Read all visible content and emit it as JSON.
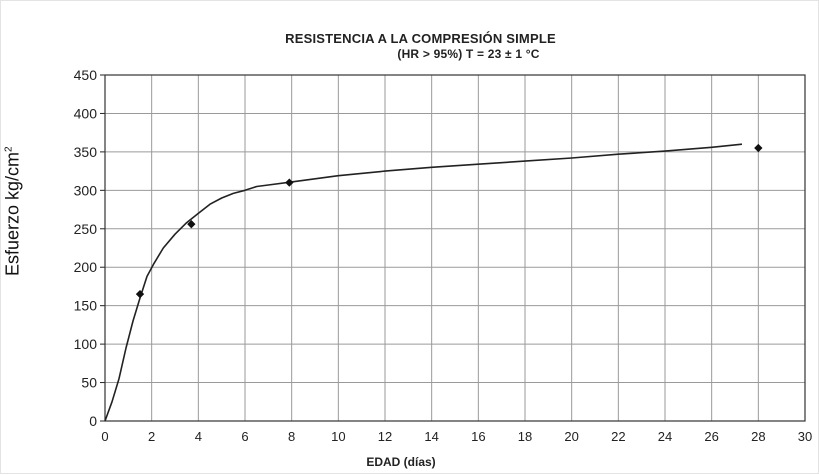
{
  "chart_data": {
    "type": "line",
    "title": "RESISTENCIA A LA COMPRESIÓN SIMPLE",
    "subtitle": "(HR > 95%) T = 23 ± 1 °C",
    "xlabel": "EDAD (días)",
    "ylabel_main": "Esfuerzo kg/cm",
    "ylabel_superscript": "2",
    "xlim": [
      0,
      30
    ],
    "ylim": [
      0,
      450
    ],
    "x_ticks": [
      "0",
      "2",
      "4",
      "6",
      "8",
      "10",
      "12",
      "14",
      "16",
      "18",
      "20",
      "22",
      "24",
      "26",
      "28",
      "30"
    ],
    "y_ticks": [
      "0",
      "50",
      "100",
      "150",
      "200",
      "250",
      "300",
      "350",
      "400",
      "450"
    ],
    "x_tick_values": [
      0,
      2,
      4,
      6,
      8,
      10,
      12,
      14,
      16,
      18,
      20,
      22,
      24,
      26,
      28,
      30
    ],
    "y_tick_values": [
      0,
      50,
      100,
      150,
      200,
      250,
      300,
      350,
      400,
      450
    ],
    "grid": true,
    "series": [
      {
        "kind": "trend-curve",
        "color": "#222222",
        "x": [
          0,
          0.3,
          0.6,
          0.9,
          1.2,
          1.5,
          1.8,
          2.1,
          2.5,
          3.0,
          3.5,
          4.0,
          4.5,
          5.0,
          5.5,
          6.0,
          6.5,
          7.0,
          8.0,
          10.0,
          12.0,
          14.0,
          16.0,
          18.0,
          20.0,
          22.0,
          24.0,
          26.0,
          27.3
        ],
        "y": [
          0,
          25,
          55,
          95,
          130,
          160,
          188,
          205,
          225,
          243,
          258,
          270,
          282,
          290,
          296,
          300,
          305,
          307,
          311,
          319,
          325,
          330,
          334,
          338,
          342,
          347,
          351,
          356,
          360
        ]
      },
      {
        "kind": "measured-points",
        "color": "#111111",
        "x": [
          1.5,
          3.7,
          7.9,
          28.0
        ],
        "y": [
          165,
          256,
          310,
          355
        ]
      }
    ]
  }
}
